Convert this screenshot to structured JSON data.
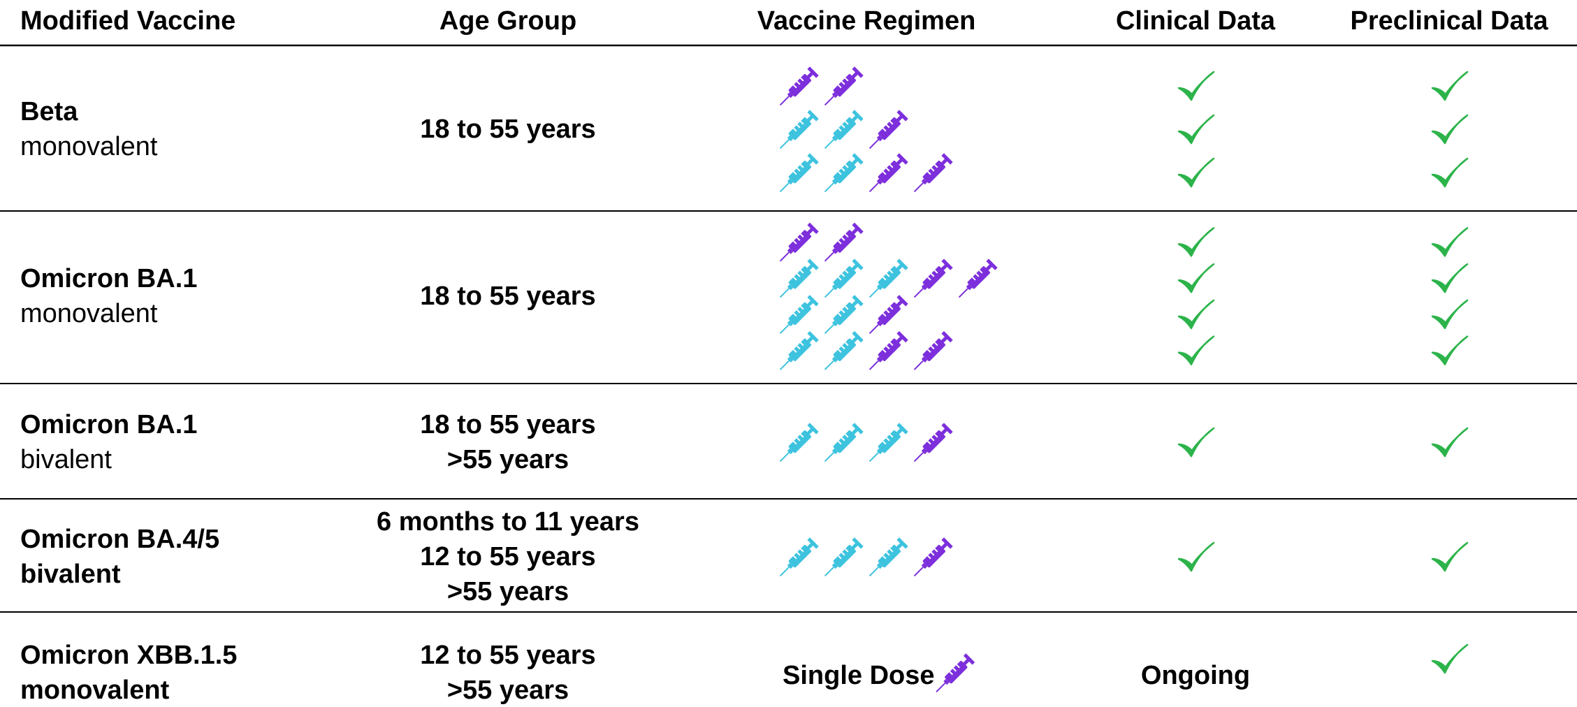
{
  "header": [
    "Modified Vaccine",
    "Age Group",
    "Vaccine Regimen",
    "Clinical Data",
    "Preclinical Data"
  ],
  "colors": {
    "original": "#3ec3df",
    "modified": "#7d2fdc",
    "check": "#2cb34a",
    "rule": "#000000"
  },
  "rows": [
    {
      "vaccine": "Beta",
      "type": "monovalent",
      "type_bold": false,
      "ages": [
        "18 to 55 years"
      ],
      "regimen": [
        [
          "modified",
          "modified"
        ],
        [
          "original",
          "original",
          "modified"
        ],
        [
          "original",
          "original",
          "modified",
          "modified"
        ]
      ],
      "clinical": 3,
      "preclinical": 3
    },
    {
      "vaccine": "Omicron BA.1",
      "type": "monovalent",
      "type_bold": false,
      "ages": [
        "18 to 55 years"
      ],
      "regimen": [
        [
          "modified",
          "modified"
        ],
        [
          "original",
          "original",
          "original",
          "modified",
          "modified"
        ],
        [
          "original",
          "original",
          "modified"
        ],
        [
          "original",
          "original",
          "modified",
          "modified"
        ]
      ],
      "clinical": 4,
      "preclinical": 4
    },
    {
      "vaccine": "Omicron BA.1",
      "type": "bivalent",
      "type_bold": false,
      "ages": [
        "18 to 55 years",
        ">55 years"
      ],
      "regimen": [
        [
          "original",
          "original",
          "original",
          "modified"
        ]
      ],
      "clinical": 1,
      "preclinical": 1
    },
    {
      "vaccine": "Omicron BA.4/5",
      "type": "bivalent",
      "type_bold": true,
      "ages": [
        "6 months to 11 years",
        "12 to 55 years",
        ">55 years"
      ],
      "regimen": [
        [
          "original",
          "original",
          "original",
          "modified"
        ]
      ],
      "clinical": 1,
      "preclinical": 1
    },
    {
      "vaccine": "Omicron XBB.1.5",
      "type": "monovalent",
      "type_bold": true,
      "ages": [
        "12 to 55 years",
        ">55 years"
      ],
      "regimen_label": "Single Dose",
      "regimen": [
        [
          "modified"
        ]
      ],
      "clinical": "Ongoing",
      "preclinical": 1
    }
  ]
}
